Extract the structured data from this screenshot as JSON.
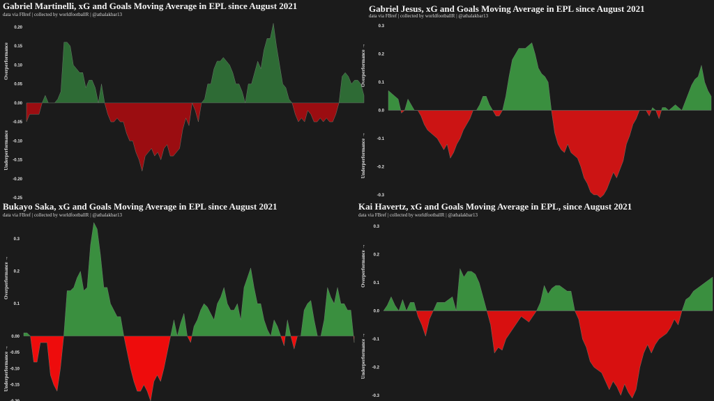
{
  "chart_data": [
    {
      "type": "area",
      "title": "Gabriel Martinelli, xG and Goals Moving Average in EPL since August 2021",
      "subtitle": "data via FBref | collected by worldfootballR | @athalakbar13",
      "ylabel_top": "Overperformance",
      "ylabel_bottom": "Underperformance",
      "yticks": [
        0.2,
        0.15,
        0.1,
        0.05,
        0.0,
        -0.05,
        -0.1,
        -0.15,
        -0.2,
        -0.25
      ],
      "ytick_labels": [
        "0.20",
        "0.15",
        "0.10",
        "0.05",
        "0.00",
        "-0.05",
        "-0.10",
        "-0.15",
        "-0.20",
        "-0.25"
      ],
      "ylim": [
        -0.25,
        0.22
      ],
      "colors": {
        "positive": "#2e6b35",
        "negative": "#9b0d11"
      },
      "values": [
        -0.05,
        -0.03,
        -0.03,
        -0.03,
        -0.03,
        0.0,
        0.02,
        0.0,
        0.0,
        0.0,
        0.01,
        0.03,
        0.16,
        0.16,
        0.15,
        0.1,
        0.09,
        0.08,
        0.08,
        0.04,
        0.06,
        0.06,
        0.04,
        0.0,
        0.05,
        0.0,
        -0.03,
        -0.05,
        -0.05,
        -0.04,
        -0.05,
        -0.05,
        -0.08,
        -0.1,
        -0.1,
        -0.13,
        -0.15,
        -0.18,
        -0.14,
        -0.13,
        -0.12,
        -0.14,
        -0.13,
        -0.15,
        -0.12,
        -0.11,
        -0.14,
        -0.14,
        -0.13,
        -0.12,
        -0.07,
        -0.04,
        -0.06,
        0.0,
        -0.02,
        -0.05,
        0.0,
        0.01,
        0.05,
        0.05,
        0.09,
        0.11,
        0.11,
        0.12,
        0.11,
        0.1,
        0.08,
        0.05,
        0.05,
        0.03,
        0.0,
        0.05,
        0.05,
        0.08,
        0.11,
        0.09,
        0.14,
        0.17,
        0.17,
        0.21,
        0.15,
        0.1,
        0.05,
        0.04,
        0.01,
        0.0,
        -0.03,
        -0.05,
        -0.04,
        -0.05,
        -0.02,
        -0.03,
        -0.05,
        -0.05,
        -0.04,
        -0.05,
        -0.04,
        -0.05,
        -0.05,
        -0.03,
        0.0,
        0.07,
        0.08,
        0.07,
        0.05,
        0.06,
        0.06,
        0.05,
        0.02
      ]
    },
    {
      "type": "area",
      "title": "Gabriel Jesus, xG and Goals Moving Average in EPL since August 2021",
      "subtitle": "data via FBref | collected by worldfootballR | @athalakbar13",
      "ylabel_top": "Overperformance",
      "ylabel_bottom": "Underperformance",
      "yticks": [
        0.3,
        0.2,
        0.1,
        0.0,
        -0.1,
        -0.2,
        -0.3
      ],
      "ytick_labels": [
        "0.3",
        "0.2",
        "0.1",
        "0.0",
        "-0.1",
        "-0.2",
        "-0.3"
      ],
      "ylim": [
        -0.32,
        0.32
      ],
      "colors": {
        "positive": "#3a8f3f",
        "negative": "#cc1414"
      },
      "values": [
        0.07,
        0.06,
        0.05,
        0.04,
        -0.01,
        0.0,
        0.04,
        0.02,
        0.0,
        0.0,
        -0.02,
        -0.05,
        -0.07,
        -0.08,
        -0.09,
        -0.1,
        -0.12,
        -0.14,
        -0.12,
        -0.17,
        -0.15,
        -0.12,
        -0.1,
        -0.07,
        -0.05,
        -0.03,
        0.0,
        0.0,
        0.02,
        0.05,
        0.05,
        0.02,
        0.0,
        -0.02,
        -0.02,
        0.0,
        0.05,
        0.12,
        0.18,
        0.2,
        0.22,
        0.22,
        0.22,
        0.23,
        0.24,
        0.2,
        0.15,
        0.13,
        0.12,
        0.1,
        0.0,
        -0.08,
        -0.12,
        -0.14,
        -0.15,
        -0.12,
        -0.15,
        -0.16,
        -0.17,
        -0.2,
        -0.24,
        -0.26,
        -0.29,
        -0.3,
        -0.3,
        -0.31,
        -0.3,
        -0.28,
        -0.25,
        -0.22,
        -0.24,
        -0.21,
        -0.18,
        -0.12,
        -0.09,
        -0.05,
        -0.03,
        0.0,
        0.0,
        0.0,
        -0.02,
        0.01,
        0.0,
        -0.03,
        0.01,
        0.01,
        0.0,
        0.01,
        0.02,
        0.01,
        0.0,
        0.03,
        0.06,
        0.09,
        0.11,
        0.12,
        0.16,
        0.1,
        0.07,
        0.05
      ]
    },
    {
      "type": "area",
      "title": "Bukayo Saka, xG and Goals Moving Average in EPL since August 2021",
      "subtitle": "data via FBref | collected by worldfootballR | @athalakbar13",
      "ylabel_top": "Overperformance",
      "ylabel_bottom": "Underperformance",
      "yticks": [
        0.3,
        0.2,
        0.1,
        0.0,
        -0.05,
        -0.1,
        -0.15,
        -0.2
      ],
      "ytick_labels": [
        "0.3",
        "0.2",
        "0.1",
        "0.00",
        "-0.05",
        "-0.10",
        "-0.15",
        "-0.20"
      ],
      "ylim": [
        -0.2,
        0.36
      ],
      "colors": {
        "positive": "#3a8f3f",
        "negative": "#ee0c0c"
      },
      "values": [
        0.01,
        0.01,
        0.0,
        -0.08,
        -0.08,
        -0.02,
        -0.02,
        -0.02,
        -0.12,
        -0.15,
        -0.17,
        -0.1,
        0.0,
        0.14,
        0.14,
        0.15,
        0.18,
        0.2,
        0.14,
        0.15,
        0.28,
        0.35,
        0.33,
        0.25,
        0.15,
        0.15,
        0.1,
        0.08,
        0.06,
        0.06,
        0.0,
        -0.05,
        -0.1,
        -0.14,
        -0.17,
        -0.17,
        -0.15,
        -0.17,
        -0.2,
        -0.14,
        -0.12,
        -0.14,
        -0.1,
        -0.05,
        0.0,
        0.05,
        0.0,
        0.04,
        0.07,
        0.0,
        -0.02,
        0.03,
        0.05,
        0.08,
        0.1,
        0.09,
        0.07,
        0.05,
        0.1,
        0.12,
        0.15,
        0.1,
        0.08,
        0.08,
        0.1,
        0.05,
        0.15,
        0.18,
        0.21,
        0.15,
        0.1,
        0.1,
        0.05,
        0.02,
        0.0,
        0.05,
        0.03,
        0.0,
        -0.03,
        0.05,
        0.0,
        -0.04,
        0.0,
        0.0,
        0.08,
        0.1,
        0.11,
        0.05,
        0.0,
        0.0,
        0.05,
        0.15,
        0.12,
        0.1,
        0.15,
        0.1,
        0.1,
        0.08,
        0.08,
        -0.02
      ]
    },
    {
      "type": "area",
      "title": "Kai Havertz, xG and Goals Moving Average in EPL, since August 2021",
      "subtitle": "data via FBref | collected by worldfootballR | @athalakbar13",
      "ylabel_top": "Overperformance",
      "ylabel_bottom": "Underperformance",
      "yticks": [
        0.3,
        0.2,
        0.1,
        0.0,
        -0.1,
        -0.2,
        -0.3
      ],
      "ytick_labels": [
        "0.3",
        "0.2",
        "0.1",
        "0.0",
        "-0.1",
        "-0.2",
        "-0.3"
      ],
      "ylim": [
        -0.32,
        0.32
      ],
      "colors": {
        "positive": "#3a8f3f",
        "negative": "#d81010"
      },
      "values": [
        0.0,
        0.02,
        0.05,
        0.02,
        0.0,
        0.04,
        0.0,
        0.03,
        0.03,
        -0.02,
        -0.05,
        -0.09,
        -0.03,
        0.0,
        0.03,
        0.03,
        0.03,
        0.04,
        0.05,
        0.0,
        0.15,
        0.12,
        0.14,
        0.14,
        0.13,
        0.1,
        0.05,
        0.0,
        -0.05,
        -0.15,
        -0.13,
        -0.14,
        -0.1,
        -0.08,
        -0.06,
        -0.04,
        -0.02,
        -0.03,
        -0.04,
        -0.02,
        0.0,
        0.03,
        0.09,
        0.06,
        0.08,
        0.09,
        0.09,
        0.08,
        0.07,
        0.07,
        0.0,
        -0.03,
        -0.1,
        -0.13,
        -0.18,
        -0.2,
        -0.21,
        -0.22,
        -0.25,
        -0.28,
        -0.25,
        -0.27,
        -0.3,
        -0.26,
        -0.29,
        -0.31,
        -0.28,
        -0.2,
        -0.15,
        -0.12,
        -0.15,
        -0.12,
        -0.1,
        -0.09,
        -0.08,
        -0.06,
        -0.03,
        -0.05,
        0.0,
        0.04,
        0.05,
        0.07,
        0.08,
        0.09,
        0.1,
        0.11,
        0.12
      ]
    }
  ]
}
